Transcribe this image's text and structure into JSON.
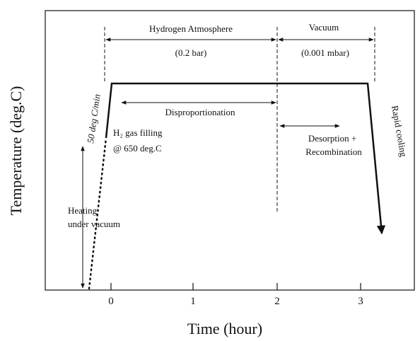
{
  "axes": {
    "x_label": "Time (hour)",
    "y_label": "Temperature (deg.C)",
    "x_ticks": [
      "0",
      "1",
      "2",
      "3"
    ]
  },
  "annotations": {
    "hydrogen_atmosphere": "Hydrogen Atmosphere",
    "hydrogen_pressure": "(0.2 bar)",
    "vacuum": "Vacuum",
    "vacuum_pressure": "(0.001 mbar)",
    "disproportionation": "Disproportionation",
    "desorption_line1": "Desorption +",
    "desorption_line2": "Recombination",
    "gas_filling_line1": "H₂ gas filling",
    "gas_filling_line2": "@ 650 deg.C",
    "heating_rate": "50 deg C/min",
    "heating_line1": "Heating",
    "heating_line2": "under vacuum",
    "cooling": "Rapid cooling"
  }
}
